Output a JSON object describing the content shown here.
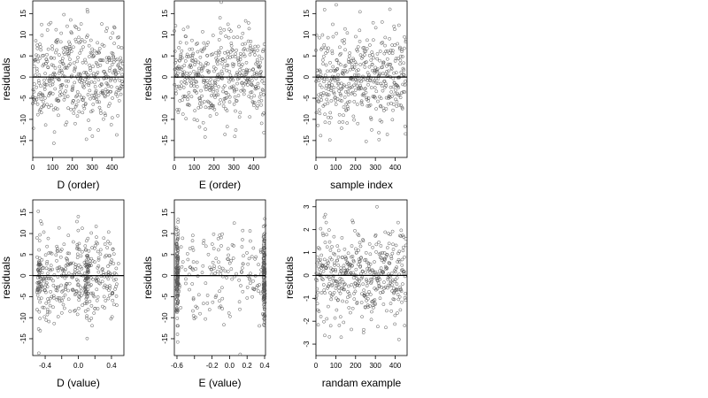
{
  "chart_data": [
    {
      "type": "scatter",
      "xlabel": "D (order)",
      "ylabel": "residuals",
      "xlim": [
        0,
        460
      ],
      "ylim": [
        -19,
        18
      ],
      "xticks": [
        0,
        100,
        200,
        300,
        400
      ],
      "yticks": [
        -15,
        -10,
        -5,
        0,
        5,
        10,
        15
      ],
      "hline": 0,
      "x_kind": "index",
      "n_points": 440,
      "y_spread": 5.5,
      "seed": 11
    },
    {
      "type": "scatter",
      "xlabel": "E (order)",
      "ylabel": "residuals",
      "xlim": [
        0,
        460
      ],
      "ylim": [
        -19,
        18
      ],
      "xticks": [
        0,
        100,
        200,
        300,
        400
      ],
      "yticks": [
        -15,
        -10,
        -5,
        0,
        5,
        10,
        15
      ],
      "hline": 0,
      "x_kind": "index",
      "n_points": 440,
      "y_spread": 5.5,
      "seed": 23
    },
    {
      "type": "scatter",
      "xlabel": "sample index",
      "ylabel": "residuals",
      "xlim": [
        0,
        460
      ],
      "ylim": [
        -19,
        18
      ],
      "xticks": [
        0,
        100,
        200,
        300,
        400
      ],
      "yticks": [
        -15,
        -10,
        -5,
        0,
        5,
        10,
        15
      ],
      "hline": 0,
      "x_kind": "index",
      "n_points": 440,
      "y_spread": 5.5,
      "seed": 37
    },
    {
      "type": "scatter",
      "xlabel": "D (value)",
      "ylabel": "residuals",
      "xlim": [
        -0.55,
        0.55
      ],
      "ylim": [
        -19,
        18
      ],
      "xticks": [
        -0.4,
        -0.2,
        0.0,
        0.2,
        0.4
      ],
      "xtick_labels": [
        "-0.4",
        "",
        "0.0",
        "",
        "0.4"
      ],
      "yticks": [
        -15,
        -10,
        -5,
        0,
        5,
        10,
        15
      ],
      "hline": 0,
      "x_kind": "d_value",
      "n_points": 440,
      "y_spread": 5.5,
      "seed": 41
    },
    {
      "type": "scatter",
      "xlabel": "E (value)",
      "ylabel": "residuals",
      "xlim": [
        -0.63,
        0.41
      ],
      "ylim": [
        -19,
        18
      ],
      "xticks": [
        -0.6,
        -0.4,
        -0.2,
        0.0,
        0.2,
        0.4
      ],
      "xtick_labels": [
        "-0.6",
        "",
        "-0.2",
        "0.0",
        "0.2",
        "0.4"
      ],
      "yticks": [
        -15,
        -10,
        -5,
        0,
        5,
        10,
        15
      ],
      "hline": 0,
      "x_kind": "e_value",
      "n_points": 440,
      "y_spread": 5.5,
      "seed": 53
    },
    {
      "type": "scatter",
      "xlabel": "randam example",
      "ylabel": "residuals",
      "xlim": [
        0,
        460
      ],
      "ylim": [
        -3.5,
        3.3
      ],
      "xticks": [
        0,
        100,
        200,
        300,
        400
      ],
      "yticks": [
        -3,
        -2,
        -1,
        0,
        1,
        2,
        3
      ],
      "hline": 0,
      "x_kind": "index",
      "n_points": 440,
      "y_spread": 1.0,
      "seed": 67
    }
  ]
}
